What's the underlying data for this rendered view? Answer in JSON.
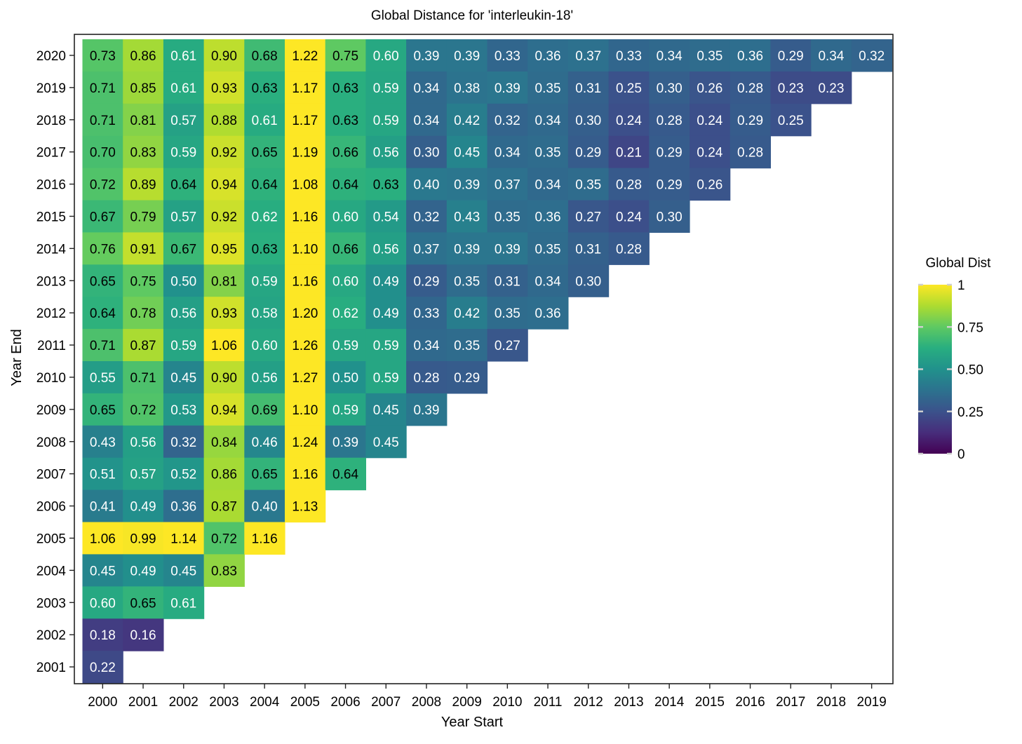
{
  "chart_data": {
    "type": "heatmap",
    "title": "Global Distance for 'interleukin-18'",
    "xlabel": "Year Start",
    "ylabel": "Year End",
    "x_categories": [
      "2000",
      "2001",
      "2002",
      "2003",
      "2004",
      "2005",
      "2006",
      "2007",
      "2008",
      "2009",
      "2010",
      "2011",
      "2012",
      "2013",
      "2014",
      "2015",
      "2016",
      "2017",
      "2018",
      "2019"
    ],
    "y_categories": [
      "2020",
      "2019",
      "2018",
      "2017",
      "2016",
      "2015",
      "2014",
      "2013",
      "2012",
      "2011",
      "2010",
      "2009",
      "2008",
      "2007",
      "2006",
      "2005",
      "2004",
      "2003",
      "2002",
      "2001"
    ],
    "values": [
      [
        0.73,
        0.86,
        0.61,
        0.9,
        0.68,
        1.22,
        0.75,
        0.6,
        0.39,
        0.39,
        0.33,
        0.36,
        0.37,
        0.33,
        0.34,
        0.35,
        0.36,
        0.29,
        0.34,
        0.32
      ],
      [
        0.71,
        0.85,
        0.61,
        0.93,
        0.63,
        1.17,
        0.63,
        0.59,
        0.34,
        0.38,
        0.39,
        0.35,
        0.31,
        0.25,
        0.3,
        0.26,
        0.28,
        0.23,
        0.23
      ],
      [
        0.71,
        0.81,
        0.57,
        0.88,
        0.61,
        1.17,
        0.63,
        0.59,
        0.34,
        0.42,
        0.32,
        0.34,
        0.3,
        0.24,
        0.28,
        0.24,
        0.29,
        0.25
      ],
      [
        0.7,
        0.83,
        0.59,
        0.92,
        0.65,
        1.19,
        0.66,
        0.56,
        0.3,
        0.45,
        0.34,
        0.35,
        0.29,
        0.21,
        0.29,
        0.24,
        0.28
      ],
      [
        0.72,
        0.89,
        0.64,
        0.94,
        0.64,
        1.08,
        0.64,
        0.63,
        0.4,
        0.39,
        0.37,
        0.34,
        0.35,
        0.28,
        0.29,
        0.26
      ],
      [
        0.67,
        0.79,
        0.57,
        0.92,
        0.62,
        1.16,
        0.6,
        0.54,
        0.32,
        0.43,
        0.35,
        0.36,
        0.27,
        0.24,
        0.3
      ],
      [
        0.76,
        0.91,
        0.67,
        0.95,
        0.63,
        1.1,
        0.66,
        0.56,
        0.37,
        0.39,
        0.39,
        0.35,
        0.31,
        0.28
      ],
      [
        0.65,
        0.75,
        0.5,
        0.81,
        0.59,
        1.16,
        0.6,
        0.49,
        0.29,
        0.35,
        0.31,
        0.34,
        0.3
      ],
      [
        0.64,
        0.78,
        0.56,
        0.93,
        0.58,
        1.2,
        0.62,
        0.49,
        0.33,
        0.42,
        0.35,
        0.36
      ],
      [
        0.71,
        0.87,
        0.59,
        1.06,
        0.6,
        1.26,
        0.59,
        0.59,
        0.34,
        0.35,
        0.27
      ],
      [
        0.55,
        0.71,
        0.45,
        0.9,
        0.56,
        1.27,
        0.5,
        0.59,
        0.28,
        0.29
      ],
      [
        0.65,
        0.72,
        0.53,
        0.94,
        0.69,
        1.1,
        0.59,
        0.45,
        0.39
      ],
      [
        0.43,
        0.56,
        0.32,
        0.84,
        0.46,
        1.24,
        0.39,
        0.45
      ],
      [
        0.51,
        0.57,
        0.52,
        0.86,
        0.65,
        1.16,
        0.64
      ],
      [
        0.41,
        0.49,
        0.36,
        0.87,
        0.4,
        1.13
      ],
      [
        1.06,
        0.99,
        1.14,
        0.72,
        1.16
      ],
      [
        0.45,
        0.49,
        0.45,
        0.83
      ],
      [
        0.6,
        0.65,
        0.61
      ],
      [
        0.18,
        0.16
      ],
      [
        0.22
      ]
    ],
    "colorscale": "viridis",
    "vmin": 0,
    "vmax": 1,
    "colorbar": {
      "title": "Global Dist",
      "ticks": [
        0,
        0.25,
        0.5,
        0.75,
        1
      ],
      "tick_labels": [
        "0",
        "0.25",
        "0.50",
        "0.75",
        "1"
      ],
      "placement": "right"
    },
    "grid": false
  }
}
